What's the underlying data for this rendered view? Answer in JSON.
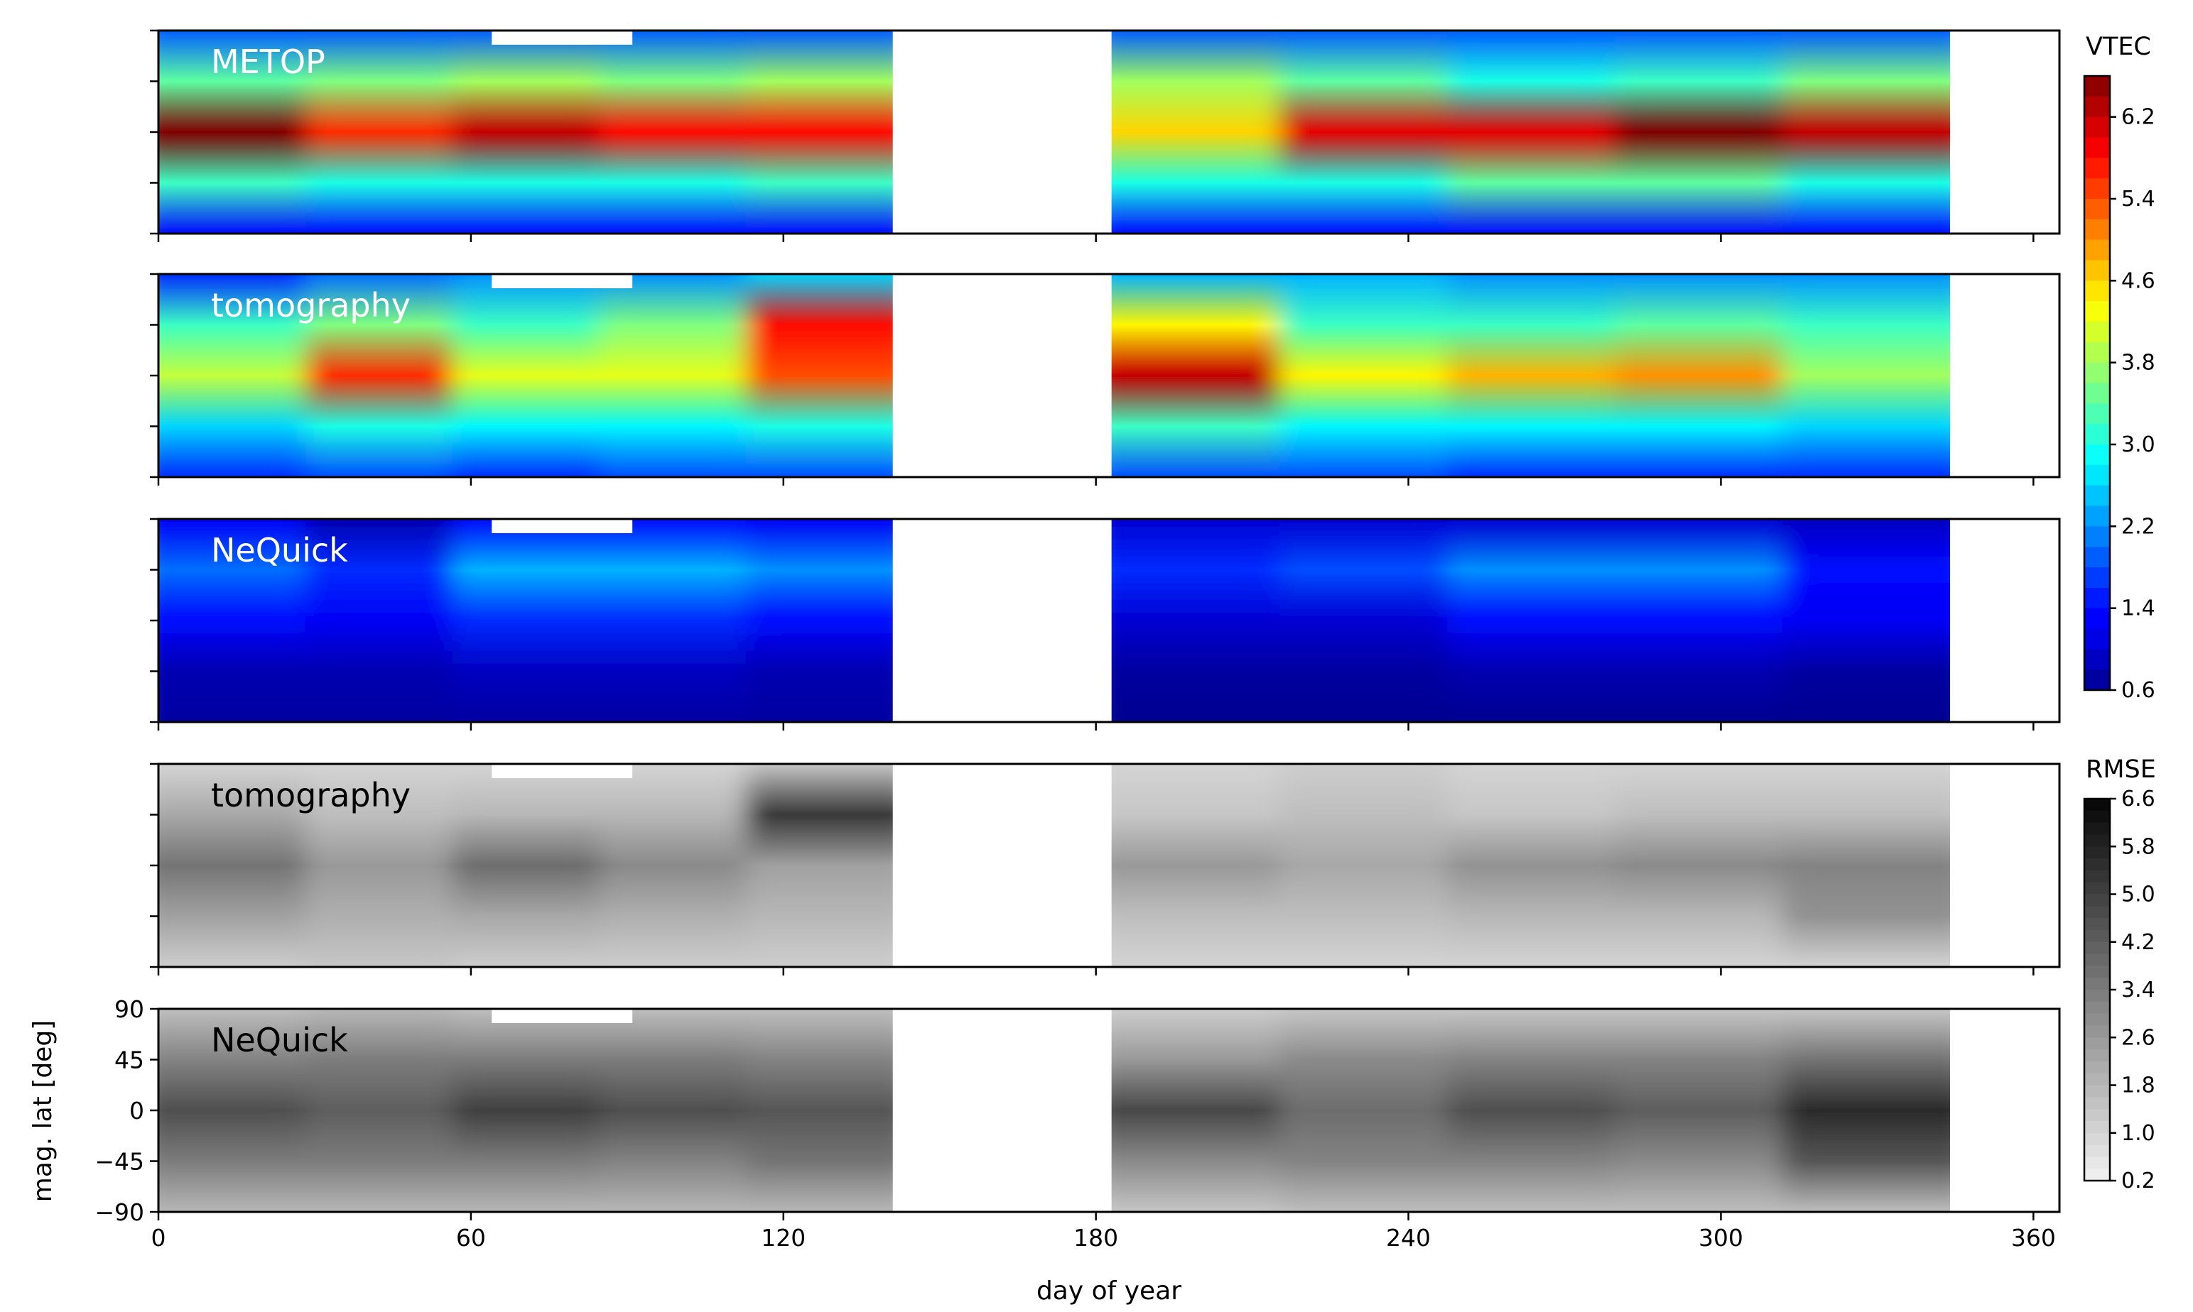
{
  "chart_data": {
    "type": "heatmap",
    "xlabel": "day of year",
    "ylabel": "mag. lat [deg]",
    "xlim": [
      0,
      365
    ],
    "ylim": [
      -90,
      90
    ],
    "x_ticks": [
      "0",
      "60",
      "120",
      "180",
      "240",
      "300",
      "360"
    ],
    "y_ticks": [
      "90",
      "45",
      "0",
      "−45",
      "−90"
    ],
    "data_gap_days": [
      141,
      183
    ],
    "data_end_day": 344,
    "panels": [
      {
        "label": "METOP",
        "label_color": "#ffffff",
        "colormap": "VTEC",
        "rows": [
          {
            "lat": 90,
            "values": [
              1.9,
              1.9,
              1.9,
              1.9,
              1.9,
              1.9,
              1.9,
              1.9,
              1.9,
              1.9
            ]
          },
          {
            "lat": 45,
            "values": [
              3.4,
              3.6,
              3.8,
              3.6,
              3.8,
              3.8,
              3.4,
              3.0,
              3.2,
              3.6
            ]
          },
          {
            "lat": 0,
            "values": [
              6.6,
              5.6,
              6.2,
              5.8,
              5.8,
              4.6,
              6.0,
              6.0,
              6.6,
              6.2
            ]
          },
          {
            "lat": -45,
            "values": [
              3.2,
              3.0,
              3.0,
              3.0,
              3.2,
              3.0,
              3.0,
              3.4,
              3.4,
              3.0
            ]
          },
          {
            "lat": -90,
            "values": [
              1.4,
              1.4,
              1.4,
              1.4,
              1.4,
              1.4,
              1.4,
              1.4,
              1.4,
              1.4
            ]
          }
        ]
      },
      {
        "label": "tomography",
        "label_color": "#ffffff",
        "colormap": "VTEC",
        "rows": [
          {
            "lat": 90,
            "values": [
              1.6,
              2.0,
              2.2,
              2.2,
              2.6,
              2.4,
              2.4,
              2.2,
              2.2,
              2.2
            ]
          },
          {
            "lat": 45,
            "values": [
              3.2,
              3.6,
              3.2,
              3.6,
              5.8,
              4.4,
              3.2,
              3.2,
              3.4,
              3.2
            ]
          },
          {
            "lat": 0,
            "values": [
              4.0,
              5.6,
              4.2,
              4.2,
              5.4,
              6.2,
              4.4,
              4.8,
              5.0,
              3.8
            ]
          },
          {
            "lat": -45,
            "values": [
              2.6,
              3.0,
              2.8,
              2.8,
              3.0,
              3.2,
              2.8,
              2.8,
              2.8,
              2.6
            ]
          },
          {
            "lat": -90,
            "values": [
              1.6,
              1.8,
              1.6,
              1.8,
              1.8,
              1.8,
              1.8,
              1.6,
              1.6,
              1.6
            ]
          }
        ]
      },
      {
        "label": "NeQuick",
        "label_color": "#ffffff",
        "colormap": "VTEC",
        "rows": [
          {
            "lat": 90,
            "values": [
              1.2,
              0.8,
              1.4,
              1.4,
              1.2,
              1.0,
              1.0,
              1.0,
              1.0,
              0.9
            ]
          },
          {
            "lat": 45,
            "values": [
              2.0,
              1.6,
              2.4,
              2.4,
              2.2,
              1.6,
              1.8,
              2.2,
              2.2,
              1.4
            ]
          },
          {
            "lat": 0,
            "values": [
              1.4,
              1.2,
              1.6,
              1.6,
              1.4,
              1.0,
              1.0,
              1.4,
              1.4,
              1.2
            ]
          },
          {
            "lat": -45,
            "values": [
              0.8,
              0.8,
              0.9,
              0.9,
              0.8,
              0.7,
              0.7,
              0.8,
              0.8,
              0.7
            ]
          },
          {
            "lat": -90,
            "values": [
              0.7,
              0.7,
              0.7,
              0.7,
              0.7,
              0.6,
              0.6,
              0.6,
              0.6,
              0.6
            ]
          }
        ]
      },
      {
        "label": "tomography",
        "label_color": "#000000",
        "colormap": "RMSE",
        "rows": [
          {
            "lat": 90,
            "values": [
              1.0,
              1.0,
              1.0,
              1.0,
              1.4,
              1.0,
              1.2,
              1.0,
              1.0,
              1.0
            ]
          },
          {
            "lat": 45,
            "values": [
              2.2,
              1.6,
              1.8,
              1.8,
              5.2,
              1.4,
              1.6,
              1.4,
              1.6,
              1.6
            ]
          },
          {
            "lat": 0,
            "values": [
              3.6,
              2.6,
              3.8,
              3.0,
              2.4,
              2.6,
              2.2,
              2.8,
              3.0,
              3.2
            ]
          },
          {
            "lat": -45,
            "values": [
              2.4,
              2.0,
              2.2,
              2.0,
              1.8,
              1.6,
              1.6,
              1.8,
              1.8,
              2.8
            ]
          },
          {
            "lat": -90,
            "values": [
              1.2,
              1.4,
              1.2,
              1.2,
              1.2,
              1.0,
              1.0,
              1.0,
              1.0,
              1.0
            ]
          }
        ]
      },
      {
        "label": "NeQuick",
        "label_color": "#000000",
        "colormap": "RMSE",
        "rows": [
          {
            "lat": 90,
            "values": [
              1.6,
              1.8,
              1.6,
              1.6,
              1.6,
              1.2,
              1.4,
              1.4,
              1.4,
              1.4
            ]
          },
          {
            "lat": 45,
            "values": [
              3.2,
              3.4,
              3.4,
              3.4,
              3.2,
              2.6,
              3.0,
              3.2,
              3.2,
              3.6
            ]
          },
          {
            "lat": 0,
            "values": [
              4.6,
              4.2,
              5.0,
              4.6,
              4.4,
              4.8,
              3.8,
              4.6,
              4.2,
              5.6
            ]
          },
          {
            "lat": -45,
            "values": [
              3.4,
              3.4,
              3.4,
              3.2,
              3.6,
              3.0,
              3.2,
              3.2,
              3.0,
              4.4
            ]
          },
          {
            "lat": -90,
            "values": [
              1.8,
              1.8,
              1.8,
              1.8,
              1.8,
              1.4,
              1.6,
              1.6,
              1.6,
              1.6
            ]
          }
        ]
      }
    ],
    "colorbars": [
      {
        "title": "VTEC",
        "cmap": "jet",
        "range": [
          0.6,
          6.6
        ],
        "ticks": [
          "6.2",
          "5.4",
          "4.6",
          "3.8",
          "3.0",
          "2.2",
          "1.4",
          "0.6"
        ]
      },
      {
        "title": "RMSE",
        "cmap": "gray_r",
        "range": [
          0.2,
          6.6
        ],
        "ticks": [
          "6.6",
          "5.8",
          "5.0",
          "4.2",
          "3.4",
          "2.6",
          "1.8",
          "1.0",
          "0.2"
        ]
      }
    ]
  }
}
